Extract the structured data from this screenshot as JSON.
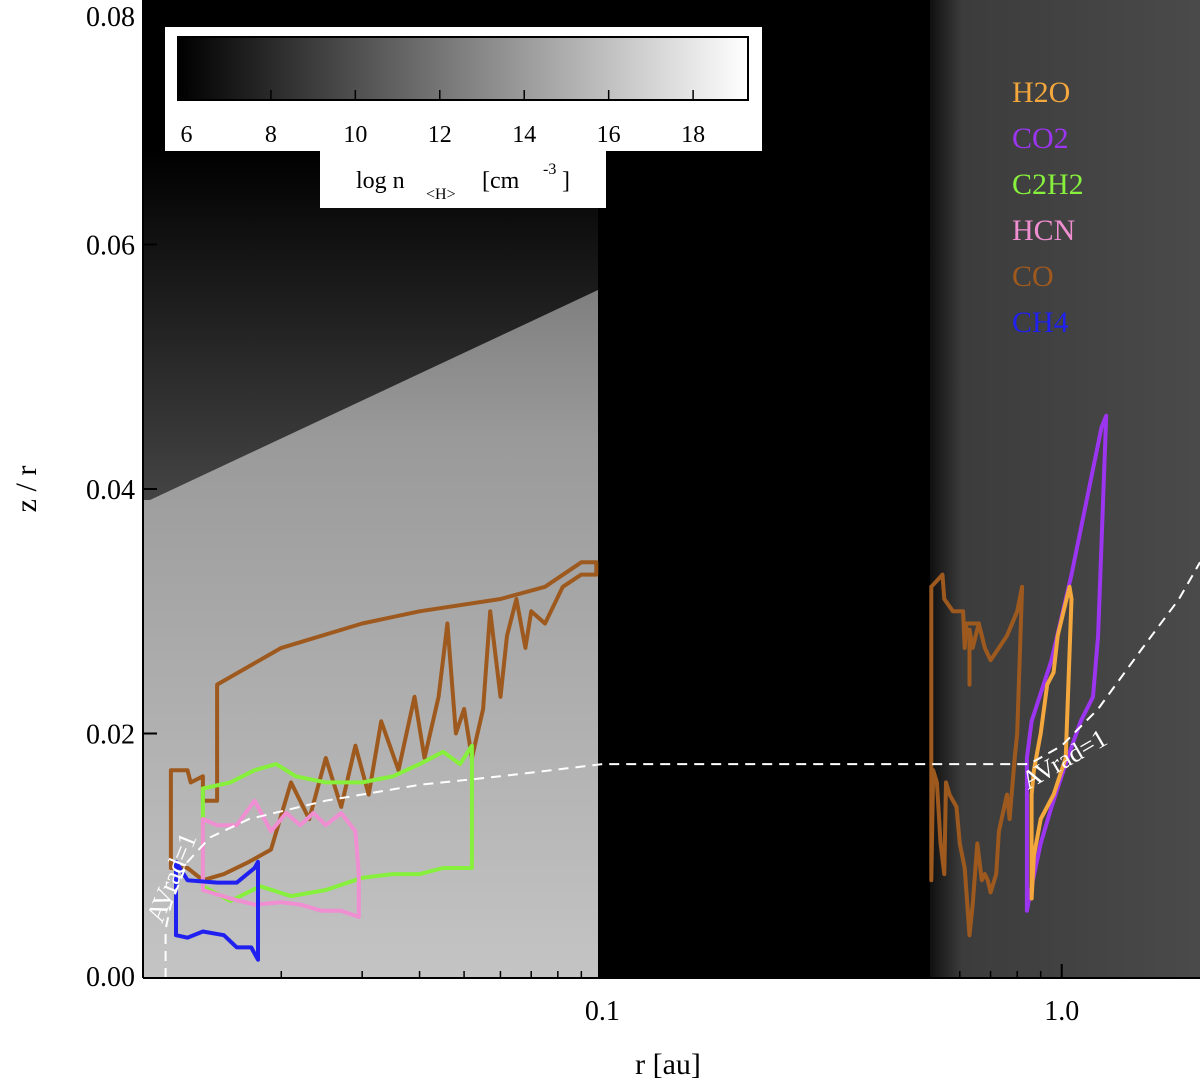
{
  "chart_data": {
    "type": "line",
    "title": "",
    "xlabel": "r [au]",
    "ylabel": "z / r",
    "x_scale": "log",
    "xlim": [
      0.01,
      2.0
    ],
    "ylim": [
      0.0,
      0.08
    ],
    "x_ticks": [
      {
        "value": 0.1,
        "label": "0.1"
      },
      {
        "value": 1.0,
        "label": "1.0"
      }
    ],
    "y_ticks": [
      {
        "value": 0.0,
        "label": "0.00"
      },
      {
        "value": 0.02,
        "label": "0.02"
      },
      {
        "value": 0.04,
        "label": "0.04"
      },
      {
        "value": 0.06,
        "label": "0.06"
      },
      {
        "value": 0.08,
        "label": "0.08"
      }
    ],
    "background": {
      "description_type": "density map",
      "colorbar": {
        "label_main": "log n",
        "label_sub": "<H>",
        "label_unit_prefix": "[cm",
        "label_exp": "-3",
        "label_unit_suffix": "]",
        "ticks": [
          "6",
          "8",
          "10",
          "12",
          "14",
          "16",
          "18"
        ],
        "tick_values": [
          6,
          8,
          10,
          12,
          14,
          16,
          18
        ],
        "range": [
          5.8,
          19.3
        ]
      }
    },
    "legend": {
      "placement": "top-right",
      "entries": [
        {
          "name": "H2O",
          "color": "#f3a73c"
        },
        {
          "name": "CO2",
          "color": "#9b35f0"
        },
        {
          "name": "C2H2",
          "color": "#86f03c"
        },
        {
          "name": "HCN",
          "color": "#f08ed2"
        },
        {
          "name": "CO",
          "color": "#9e5a1e"
        },
        {
          "name": "CH4",
          "color": "#2020f0"
        }
      ]
    },
    "annotations": [
      {
        "text": "AVrad=1",
        "near_r": 0.0115,
        "near_z": 0.0085
      },
      {
        "text": "AVrad=1",
        "near_r": 1.3,
        "near_z": 0.022
      }
    ],
    "series": [
      {
        "name": "CO",
        "color": "#9e5a1e",
        "points": [
          [
            0.0115,
            0.009
          ],
          [
            0.0115,
            0.017
          ],
          [
            0.0125,
            0.017
          ],
          [
            0.0127,
            0.016
          ],
          [
            0.0135,
            0.0165
          ],
          [
            0.0135,
            0.0145
          ],
          [
            0.0145,
            0.0145
          ],
          [
            0.0145,
            0.024
          ],
          [
            0.02,
            0.027
          ],
          [
            0.03,
            0.029
          ],
          [
            0.04,
            0.03
          ],
          [
            0.06,
            0.031
          ],
          [
            0.075,
            0.032
          ],
          [
            0.09,
            0.034
          ],
          [
            0.097,
            0.034
          ],
          [
            0.097,
            0.033
          ],
          [
            0.09,
            0.033
          ],
          [
            0.082,
            0.032
          ],
          [
            0.075,
            0.029
          ],
          [
            0.07,
            0.03
          ],
          [
            0.068,
            0.027
          ],
          [
            0.065,
            0.031
          ],
          [
            0.062,
            0.028
          ],
          [
            0.06,
            0.023
          ],
          [
            0.057,
            0.03
          ],
          [
            0.055,
            0.022
          ],
          [
            0.052,
            0.018
          ],
          [
            0.05,
            0.022
          ],
          [
            0.048,
            0.02
          ],
          [
            0.046,
            0.029
          ],
          [
            0.044,
            0.023
          ],
          [
            0.041,
            0.018
          ],
          [
            0.039,
            0.023
          ],
          [
            0.036,
            0.017
          ],
          [
            0.033,
            0.021
          ],
          [
            0.031,
            0.015
          ],
          [
            0.029,
            0.019
          ],
          [
            0.027,
            0.014
          ],
          [
            0.025,
            0.018
          ],
          [
            0.023,
            0.013
          ],
          [
            0.021,
            0.016
          ],
          [
            0.019,
            0.0105
          ],
          [
            0.017,
            0.0095
          ],
          [
            0.015,
            0.0085
          ],
          [
            0.0135,
            0.008
          ],
          [
            0.0125,
            0.009
          ],
          [
            0.0115,
            0.009
          ]
        ]
      },
      {
        "name": "C2H2",
        "color": "#86f03c",
        "points": [
          [
            0.0135,
            0.0155
          ],
          [
            0.0135,
            0.0075
          ],
          [
            0.0155,
            0.0063
          ],
          [
            0.018,
            0.0075
          ],
          [
            0.021,
            0.0067
          ],
          [
            0.025,
            0.0072
          ],
          [
            0.03,
            0.0082
          ],
          [
            0.035,
            0.0085
          ],
          [
            0.04,
            0.0085
          ],
          [
            0.045,
            0.009
          ],
          [
            0.052,
            0.009
          ],
          [
            0.052,
            0.019
          ],
          [
            0.049,
            0.0175
          ],
          [
            0.045,
            0.0185
          ],
          [
            0.04,
            0.0175
          ],
          [
            0.035,
            0.0165
          ],
          [
            0.03,
            0.016
          ],
          [
            0.025,
            0.016
          ],
          [
            0.0215,
            0.0165
          ],
          [
            0.0195,
            0.0175
          ],
          [
            0.0175,
            0.017
          ],
          [
            0.0155,
            0.016
          ],
          [
            0.0135,
            0.0155
          ]
        ]
      },
      {
        "name": "HCN",
        "color": "#f08ed2",
        "points": [
          [
            0.0135,
            0.013
          ],
          [
            0.0145,
            0.0125
          ],
          [
            0.016,
            0.0125
          ],
          [
            0.0175,
            0.0145
          ],
          [
            0.019,
            0.012
          ],
          [
            0.0205,
            0.0135
          ],
          [
            0.022,
            0.0125
          ],
          [
            0.0235,
            0.0135
          ],
          [
            0.025,
            0.0125
          ],
          [
            0.027,
            0.0135
          ],
          [
            0.029,
            0.012
          ],
          [
            0.0295,
            0.0085
          ],
          [
            0.0295,
            0.005
          ],
          [
            0.027,
            0.0055
          ],
          [
            0.0245,
            0.0055
          ],
          [
            0.022,
            0.006
          ],
          [
            0.02,
            0.0062
          ],
          [
            0.0175,
            0.006
          ],
          [
            0.0155,
            0.0065
          ],
          [
            0.0135,
            0.0072
          ],
          [
            0.0135,
            0.013
          ]
        ]
      },
      {
        "name": "CH4",
        "color": "#2020f0",
        "points": [
          [
            0.0118,
            0.0095
          ],
          [
            0.0125,
            0.008
          ],
          [
            0.0145,
            0.0078
          ],
          [
            0.016,
            0.0078
          ],
          [
            0.0175,
            0.009
          ],
          [
            0.0178,
            0.0095
          ],
          [
            0.0178,
            0.0015
          ],
          [
            0.0172,
            0.0025
          ],
          [
            0.016,
            0.0025
          ],
          [
            0.015,
            0.0035
          ],
          [
            0.0135,
            0.0038
          ],
          [
            0.0125,
            0.0033
          ],
          [
            0.0118,
            0.0035
          ],
          [
            0.0118,
            0.0095
          ]
        ]
      },
      {
        "name": "CO",
        "color": "#9e5a1e",
        "points": [
          [
            0.52,
            0.032
          ],
          [
            0.55,
            0.033
          ],
          [
            0.555,
            0.031
          ],
          [
            0.58,
            0.03
          ],
          [
            0.61,
            0.03
          ],
          [
            0.615,
            0.027
          ],
          [
            0.62,
            0.029
          ],
          [
            0.66,
            0.029
          ],
          [
            0.68,
            0.027
          ],
          [
            0.7,
            0.026
          ],
          [
            0.73,
            0.027
          ],
          [
            0.76,
            0.028
          ],
          [
            0.8,
            0.03
          ],
          [
            0.82,
            0.032
          ],
          [
            0.8,
            0.02
          ],
          [
            0.79,
            0.018
          ],
          [
            0.77,
            0.013
          ],
          [
            0.76,
            0.015
          ],
          [
            0.73,
            0.012
          ],
          [
            0.72,
            0.0085
          ],
          [
            0.7,
            0.007
          ],
          [
            0.69,
            0.008
          ],
          [
            0.68,
            0.0085
          ],
          [
            0.67,
            0.008
          ],
          [
            0.655,
            0.011
          ],
          [
            0.64,
            0.006
          ],
          [
            0.63,
            0.0035
          ],
          [
            0.615,
            0.009
          ],
          [
            0.6,
            0.011
          ],
          [
            0.59,
            0.014
          ],
          [
            0.57,
            0.015
          ],
          [
            0.56,
            0.016
          ],
          [
            0.555,
            0.0085
          ],
          [
            0.545,
            0.011
          ],
          [
            0.535,
            0.016
          ],
          [
            0.525,
            0.017
          ],
          [
            0.52,
            0.008
          ],
          [
            0.52,
            0.032
          ]
        ]
      },
      {
        "name": "CO",
        "color": "#9e5a1e",
        "points": [
          [
            0.63,
            0.024
          ],
          [
            0.63,
            0.0285
          ],
          [
            0.64,
            0.027
          ],
          [
            0.66,
            0.029
          ]
        ]
      },
      {
        "name": "CO2",
        "color": "#9b35f0",
        "points": [
          [
            0.84,
            0.0055
          ],
          [
            0.86,
            0.0075
          ],
          [
            0.9,
            0.011
          ],
          [
            0.95,
            0.014
          ],
          [
            1.03,
            0.018
          ],
          [
            1.1,
            0.021
          ],
          [
            1.17,
            0.023
          ],
          [
            1.2,
            0.028
          ],
          [
            1.25,
            0.046
          ],
          [
            1.22,
            0.045
          ],
          [
            1.05,
            0.033
          ],
          [
            0.95,
            0.026
          ],
          [
            0.86,
            0.021
          ],
          [
            0.84,
            0.018
          ],
          [
            0.84,
            0.0055
          ]
        ]
      },
      {
        "name": "H2O",
        "color": "#f3a73c",
        "points": [
          [
            0.86,
            0.0065
          ],
          [
            0.87,
            0.01
          ],
          [
            0.9,
            0.013
          ],
          [
            0.96,
            0.015
          ],
          [
            1.02,
            0.018
          ],
          [
            1.05,
            0.031
          ],
          [
            1.04,
            0.032
          ],
          [
            0.98,
            0.028
          ],
          [
            0.96,
            0.025
          ],
          [
            0.93,
            0.024
          ],
          [
            0.9,
            0.02
          ],
          [
            0.87,
            0.017
          ],
          [
            0.86,
            0.015
          ],
          [
            0.86,
            0.0065
          ]
        ]
      }
    ],
    "dashed_contours": [
      {
        "name": "AVrad=1",
        "color": "#ffffff",
        "points": [
          [
            0.0112,
            0.0
          ],
          [
            0.0112,
            0.004
          ],
          [
            0.0115,
            0.006
          ],
          [
            0.0125,
            0.0095
          ],
          [
            0.014,
            0.0115
          ],
          [
            0.017,
            0.013
          ],
          [
            0.025,
            0.0145
          ],
          [
            0.04,
            0.0158
          ],
          [
            0.06,
            0.0165
          ],
          [
            0.1,
            0.0175
          ],
          [
            0.2,
            0.0175
          ],
          [
            0.4,
            0.0175
          ],
          [
            0.7,
            0.0175
          ],
          [
            0.85,
            0.0175
          ],
          [
            1.0,
            0.019
          ],
          [
            1.2,
            0.022
          ],
          [
            1.5,
            0.027
          ],
          [
            1.8,
            0.031
          ],
          [
            2.0,
            0.034
          ]
        ]
      }
    ]
  }
}
